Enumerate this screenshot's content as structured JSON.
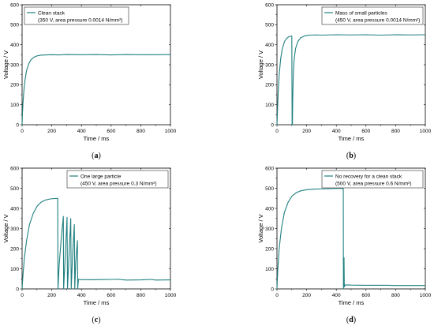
{
  "colors": {
    "series": "#1f7f7f",
    "axis": "#000000"
  },
  "chart_data": [
    {
      "type": "line",
      "panel_label": {
        "open": "(",
        "letter": "a",
        "close": ")"
      },
      "xlabel": "Time / ms",
      "ylabel": "Voltage / V",
      "xlim": [
        0,
        1000
      ],
      "ylim": [
        0,
        600
      ],
      "xticks": [
        0,
        200,
        400,
        600,
        800,
        1000
      ],
      "yticks": [
        0,
        100,
        200,
        300,
        400,
        500,
        600
      ],
      "legend_position": "top-left",
      "series": [
        {
          "name": "Clean stack",
          "subtitle": "(350 V, area pressure 0.0014 N/mm²)",
          "x": [
            0,
            2,
            6,
            12,
            20,
            30,
            45,
            60,
            80,
            100,
            130,
            160,
            200,
            250,
            300,
            400,
            500,
            600,
            700,
            800,
            900,
            1000
          ],
          "y": [
            0,
            50,
            110,
            170,
            225,
            270,
            305,
            325,
            338,
            344,
            348,
            349,
            350,
            349,
            351,
            350,
            351,
            349,
            351,
            350,
            350,
            351
          ]
        }
      ]
    },
    {
      "type": "line",
      "panel_label": {
        "open": "(",
        "letter": "b",
        "close": ")"
      },
      "xlabel": "Time / ms",
      "ylabel": "Voltage / V",
      "xlim": [
        0,
        1000
      ],
      "ylim": [
        0,
        600
      ],
      "xticks": [
        0,
        200,
        400,
        600,
        800,
        1000
      ],
      "yticks": [
        0,
        100,
        200,
        300,
        400,
        500,
        600
      ],
      "legend_position": "top-right",
      "series": [
        {
          "name": "Mass of small particles",
          "subtitle": "(450 V, area pressure 0.0014 N/mm²)",
          "x": [
            0,
            3,
            8,
            15,
            25,
            35,
            50,
            65,
            80,
            95,
            100,
            102,
            104,
            106,
            110,
            115,
            125,
            140,
            160,
            190,
            220,
            260,
            300,
            400,
            500,
            600,
            700,
            800,
            900,
            1000
          ],
          "y": [
            0,
            60,
            160,
            250,
            330,
            375,
            415,
            432,
            440,
            443,
            443,
            0,
            0,
            120,
            250,
            320,
            380,
            415,
            435,
            445,
            448,
            449,
            448,
            450,
            449,
            450,
            448,
            450,
            449,
            450
          ]
        }
      ]
    },
    {
      "type": "line",
      "panel_label": {
        "open": "(",
        "letter": "c",
        "close": ")"
      },
      "xlabel": "Time / ms",
      "ylabel": "Voltage / V",
      "xlim": [
        0,
        1000
      ],
      "ylim": [
        0,
        600
      ],
      "xticks": [
        0,
        200,
        400,
        600,
        800,
        1000
      ],
      "yticks": [
        0,
        100,
        200,
        300,
        400,
        500,
        600
      ],
      "legend_position": "top-right",
      "series": [
        {
          "name": "One large particle",
          "subtitle": "(450 V, area pressure 0.3 N/mm²)",
          "x": [
            0,
            5,
            15,
            30,
            50,
            75,
            100,
            130,
            160,
            190,
            220,
            240,
            242,
            250,
            265,
            278,
            280,
            290,
            303,
            306,
            316,
            328,
            331,
            340,
            352,
            355,
            362,
            373,
            375,
            380,
            400,
            500,
            600,
            650,
            700,
            800,
            870,
            900,
            1000
          ],
          "y": [
            0,
            60,
            150,
            240,
            320,
            375,
            410,
            432,
            442,
            447,
            449,
            450,
            0,
            120,
            260,
            360,
            0,
            150,
            355,
            0,
            160,
            350,
            0,
            160,
            320,
            0,
            140,
            240,
            0,
            48,
            46,
            46,
            47,
            48,
            44,
            45,
            47,
            44,
            45
          ]
        }
      ]
    },
    {
      "type": "line",
      "panel_label": {
        "open": "(",
        "letter": "d",
        "close": ")"
      },
      "xlabel": "Time / ms",
      "ylabel": "Voltage / V",
      "xlim": [
        0,
        1000
      ],
      "ylim": [
        0,
        600
      ],
      "xticks": [
        0,
        200,
        400,
        600,
        800,
        1000
      ],
      "yticks": [
        0,
        100,
        200,
        300,
        400,
        500,
        600
      ],
      "legend_position": "top-right",
      "series": [
        {
          "name": "No recovery for a clean stack",
          "subtitle": "(500 V, area pressure 0.6 N/mm²)",
          "x": [
            0,
            5,
            15,
            30,
            50,
            75,
            100,
            130,
            160,
            200,
            250,
            300,
            350,
            400,
            440,
            447,
            448,
            452,
            454,
            458,
            462,
            470,
            500,
            600,
            700,
            750,
            800,
            900,
            1000
          ],
          "y": [
            0,
            90,
            200,
            300,
            380,
            430,
            460,
            478,
            487,
            493,
            496,
            497,
            498,
            499,
            499,
            499,
            0,
            155,
            10,
            20,
            18,
            20,
            19,
            18,
            18,
            18,
            17,
            17,
            17
          ]
        }
      ]
    }
  ]
}
